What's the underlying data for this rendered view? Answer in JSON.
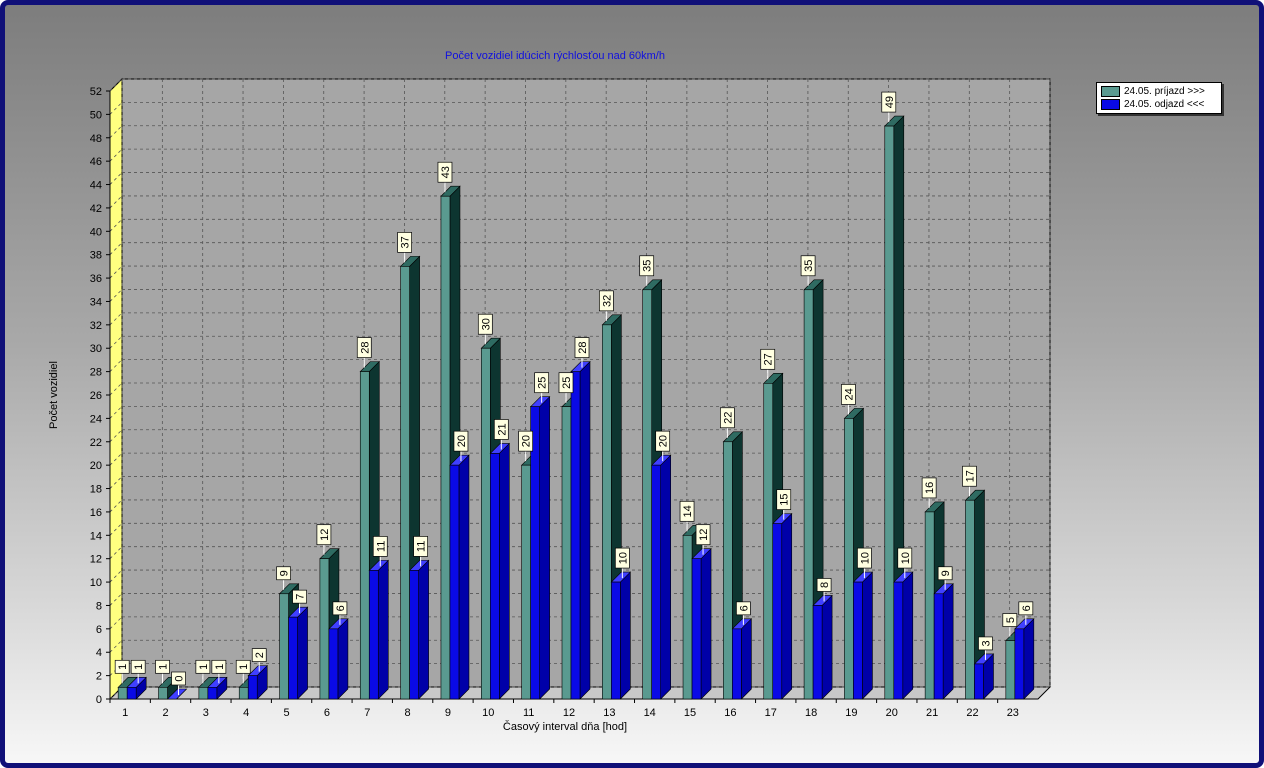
{
  "chart_data": {
    "type": "bar",
    "title": "Počet vozidiel idúcich rýchlosťou nad 60km/h",
    "xlabel": "Časový interval dňa [hod]",
    "ylabel": "Počet vozidiel",
    "categories": [
      "1",
      "2",
      "3",
      "4",
      "5",
      "6",
      "7",
      "8",
      "9",
      "10",
      "11",
      "12",
      "13",
      "14",
      "15",
      "16",
      "17",
      "18",
      "19",
      "20",
      "21",
      "22",
      "23"
    ],
    "series": [
      {
        "name": "24.05.  príjazd >>>",
        "color": "#5a9a90",
        "values": [
          1,
          1,
          1,
          1,
          9,
          12,
          28,
          37,
          43,
          30,
          20,
          25,
          32,
          35,
          14,
          22,
          27,
          35,
          24,
          49,
          16,
          17,
          5
        ]
      },
      {
        "name": "24.05.  odjazd <<<",
        "color": "#0a0ae6",
        "values": [
          1,
          0,
          1,
          2,
          7,
          6,
          11,
          11,
          20,
          21,
          25,
          28,
          10,
          20,
          12,
          6,
          15,
          8,
          10,
          10,
          9,
          3,
          6
        ]
      }
    ],
    "ylim": [
      0,
      52
    ],
    "yticks": [
      0,
      2,
      4,
      6,
      8,
      10,
      12,
      14,
      16,
      18,
      20,
      22,
      24,
      26,
      28,
      30,
      32,
      34,
      36,
      38,
      40,
      42,
      44,
      46,
      48,
      50,
      52
    ],
    "grid": true,
    "legend_position": "top-right",
    "three_d": true
  }
}
